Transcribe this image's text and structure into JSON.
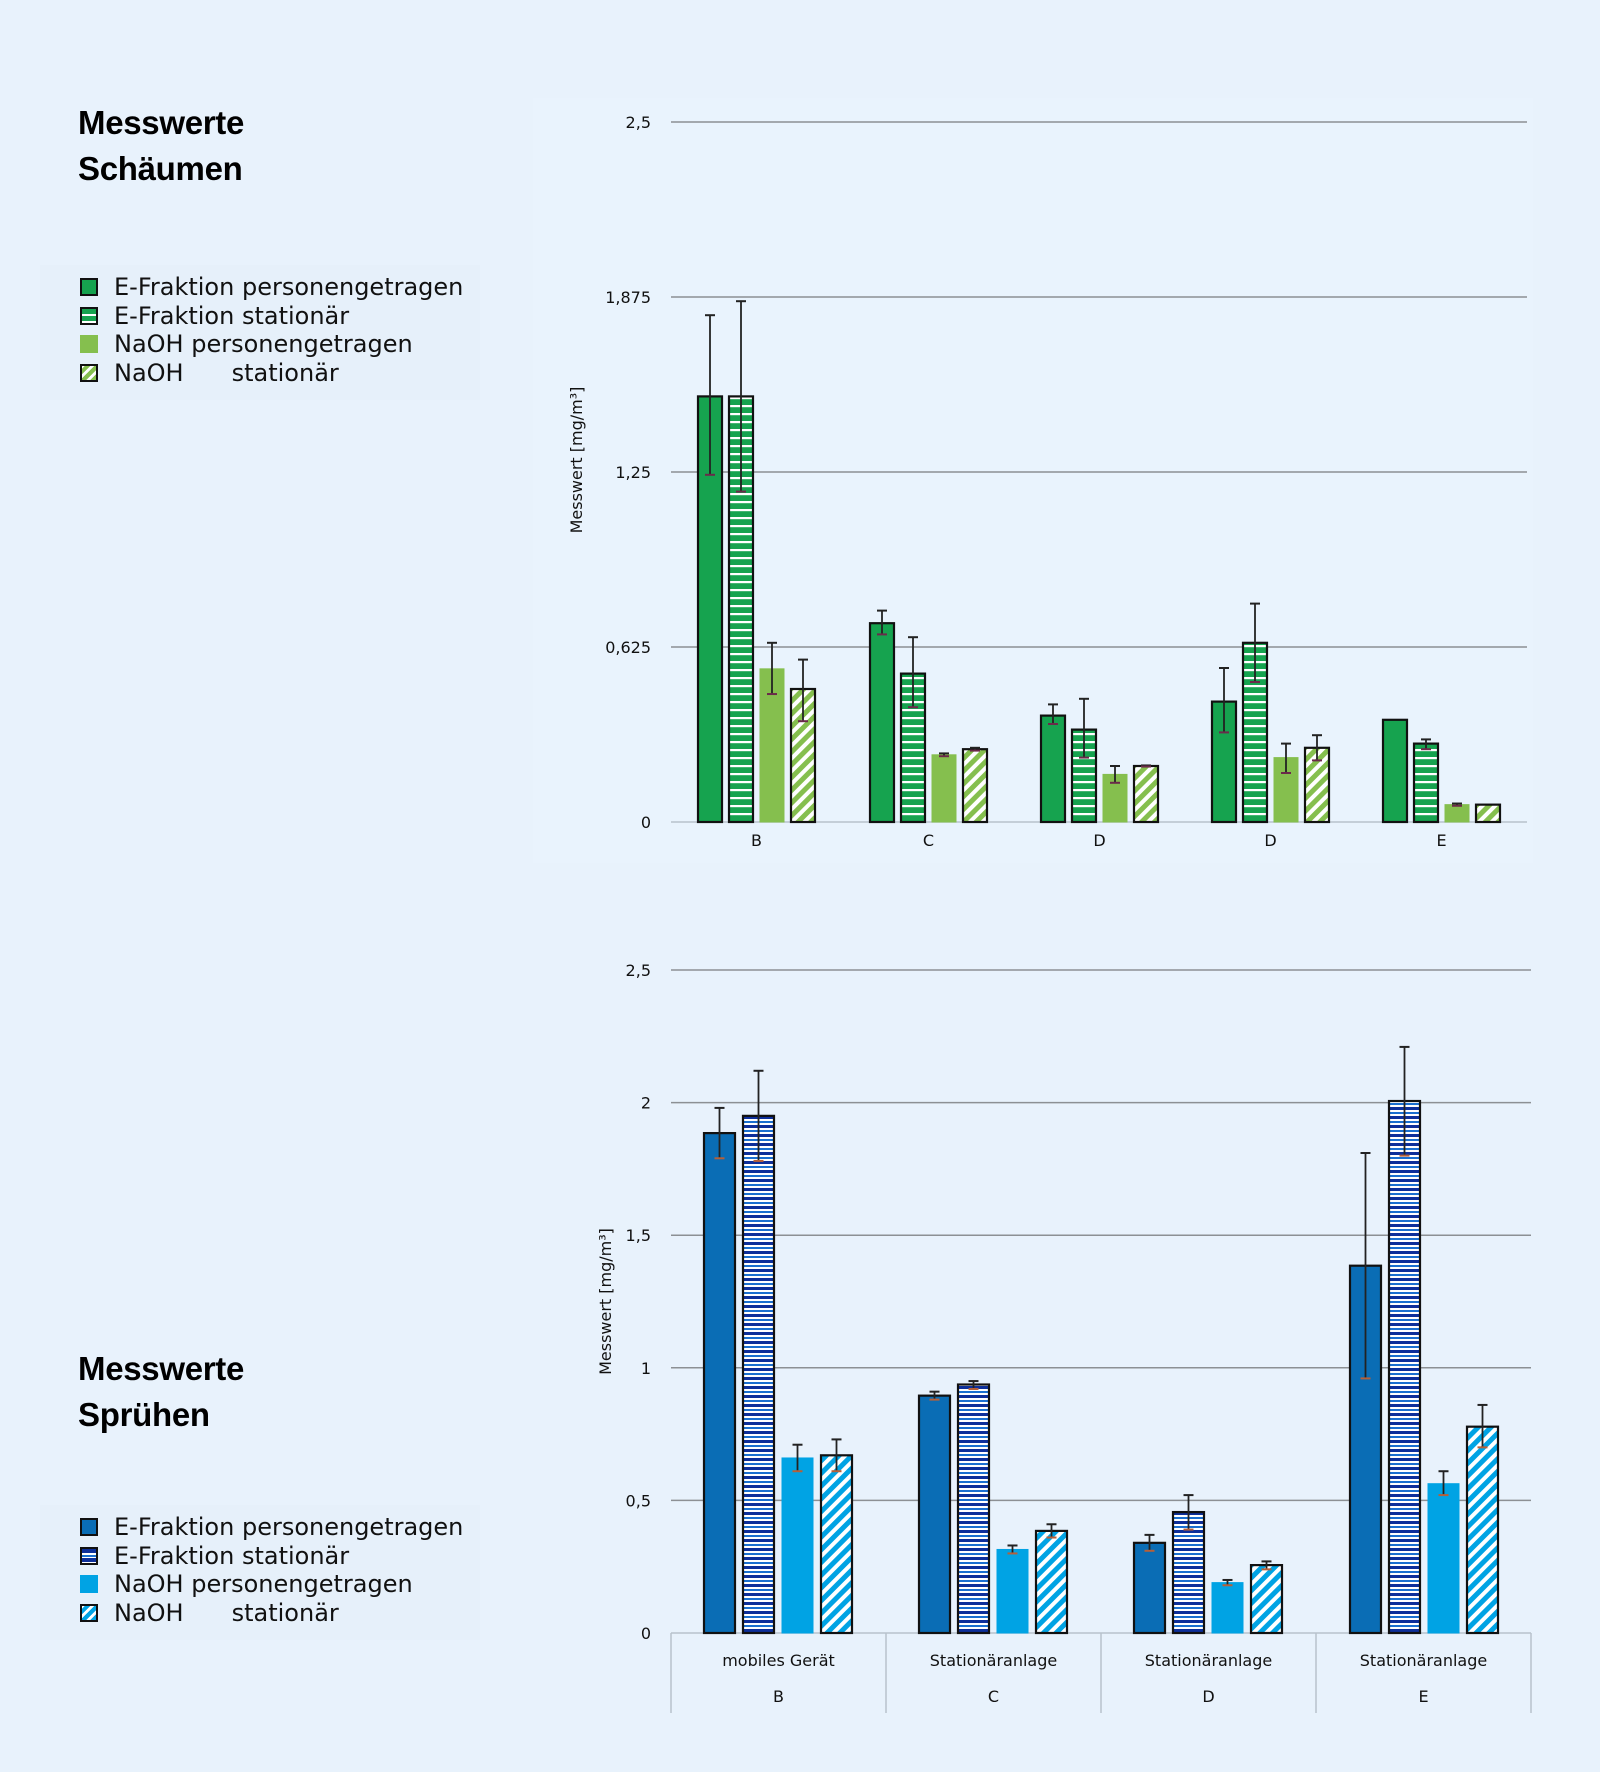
{
  "sections": {
    "foaming": {
      "title_line1": "Messwerte",
      "title_line2": "Schäumen",
      "legend": [
        {
          "label": "E-Fraktion personengetragen",
          "pattern": "solid",
          "color": "#16a34f"
        },
        {
          "label": "E-Fraktion stationär",
          "pattern": "hstripe",
          "color": "#16a34f"
        },
        {
          "label": "NaOH personengetragen",
          "pattern": "solid",
          "color": "#85bf4e"
        },
        {
          "label_a": "NaOH",
          "label_b": "stationär",
          "pattern": "diag",
          "color": "#85bf4e"
        }
      ]
    },
    "spraying": {
      "title_line1": "Messwerte",
      "title_line2": "Sprühen",
      "legend": [
        {
          "label": "E-Fraktion personengetragen",
          "pattern": "solid",
          "color": "#0a6db5"
        },
        {
          "label": "E-Fraktion stationär",
          "pattern": "hstripe",
          "color": "#0d2f9a"
        },
        {
          "label": "NaOH personengetragen",
          "pattern": "solid",
          "color": "#00a3e4"
        },
        {
          "label_a": "NaOH",
          "label_b": "stationär",
          "pattern": "diag",
          "color": "#00a3e4"
        }
      ]
    }
  },
  "chart_data": [
    {
      "type": "bar",
      "title": "Messwerte Schäumen",
      "xlabel": "",
      "ylabel": "Messwert [mg/m³]",
      "ylim": [
        0,
        2.5
      ],
      "yticks": [
        0,
        0.625,
        1.25,
        1.875,
        2.5
      ],
      "ytick_labels": [
        "0",
        "0,625",
        "1,25",
        "1,875",
        "2,5"
      ],
      "grid": true,
      "legend_position": "left",
      "categories": [
        "B",
        "C",
        "D",
        "D",
        "E"
      ],
      "series": [
        {
          "name": "E-Fraktion personengetragen",
          "color": "#16a34f",
          "pattern": "solid",
          "values": [
            1.52,
            0.71,
            0.38,
            0.43,
            0.365
          ],
          "err_low": [
            1.24,
            0.67,
            0.35,
            0.32,
            null
          ],
          "err_high": [
            1.81,
            0.755,
            0.42,
            0.55,
            null
          ]
        },
        {
          "name": "E-Fraktion stationär",
          "color": "#16a34f",
          "pattern": "hstripe",
          "values": [
            1.52,
            0.53,
            0.33,
            0.64,
            0.28
          ],
          "err_low": [
            1.18,
            0.41,
            0.23,
            0.5,
            0.26
          ],
          "err_high": [
            1.86,
            0.66,
            0.44,
            0.78,
            0.295
          ]
        },
        {
          "name": "NaOH personengetragen",
          "color": "#85bf4e",
          "pattern": "solid",
          "values": [
            0.547,
            0.24,
            0.17,
            0.23,
            0.062
          ],
          "err_low": [
            0.457,
            0.235,
            0.14,
            0.175,
            0.058
          ],
          "err_high": [
            0.64,
            0.245,
            0.2,
            0.28,
            0.066
          ]
        },
        {
          "name": "NaOH stationär",
          "color": "#85bf4e",
          "pattern": "diag",
          "values": [
            0.475,
            0.26,
            0.2,
            0.265,
            0.062
          ],
          "err_low": [
            0.36,
            0.255,
            0.198,
            0.22,
            null
          ],
          "err_high": [
            0.58,
            0.265,
            0.202,
            0.31,
            null
          ]
        }
      ]
    },
    {
      "type": "bar",
      "title": "Messwerte Sprühen",
      "xlabel": "",
      "ylabel": "Messwert [mg/m³]",
      "ylim": [
        0,
        2.5
      ],
      "yticks": [
        0,
        0.5,
        1,
        1.5,
        2,
        2.5
      ],
      "ytick_labels": [
        "0",
        "0,5",
        "1",
        "1,5",
        "2",
        "2,5"
      ],
      "grid": true,
      "legend_position": "left",
      "categories": [
        "B",
        "C",
        "D",
        "E"
      ],
      "category_groups": [
        "mobiles Gerät",
        "Stationäranlage",
        "Stationäranlage",
        "Stationäranlage"
      ],
      "series": [
        {
          "name": "E-Fraktion personengetragen",
          "color": "#0a6db5",
          "pattern": "solid",
          "values": [
            1.885,
            0.895,
            0.34,
            1.385
          ],
          "err_low": [
            1.79,
            0.88,
            0.31,
            0.96
          ],
          "err_high": [
            1.98,
            0.91,
            0.37,
            1.81
          ]
        },
        {
          "name": "E-Fraktion stationär",
          "color": "#0d2f9a",
          "pattern": "hstripe",
          "values": [
            1.95,
            0.937,
            0.456,
            2.006
          ],
          "err_low": [
            1.78,
            0.92,
            0.39,
            1.8
          ],
          "err_high": [
            2.12,
            0.95,
            0.52,
            2.21
          ]
        },
        {
          "name": "NaOH personengetragen",
          "color": "#00a3e4",
          "pattern": "solid",
          "values": [
            0.66,
            0.315,
            0.19,
            0.563
          ],
          "err_low": [
            0.61,
            0.3,
            0.18,
            0.52
          ],
          "err_high": [
            0.71,
            0.33,
            0.2,
            0.61
          ]
        },
        {
          "name": "NaOH stationär",
          "color": "#00a3e4",
          "pattern": "diag",
          "values": [
            0.67,
            0.385,
            0.256,
            0.778
          ],
          "err_low": [
            0.61,
            0.36,
            0.24,
            0.7
          ],
          "err_high": [
            0.73,
            0.41,
            0.27,
            0.86
          ]
        }
      ]
    }
  ]
}
